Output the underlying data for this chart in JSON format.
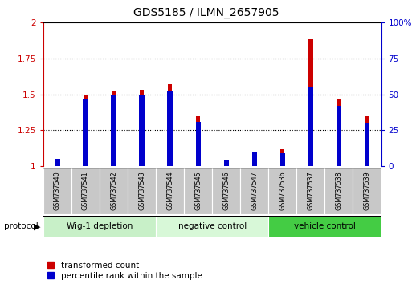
{
  "title": "GDS5185 / ILMN_2657905",
  "samples": [
    "GSM737540",
    "GSM737541",
    "GSM737542",
    "GSM737543",
    "GSM737544",
    "GSM737545",
    "GSM737546",
    "GSM737547",
    "GSM737536",
    "GSM737537",
    "GSM737538",
    "GSM737539"
  ],
  "transformed_count": [
    1.02,
    1.49,
    1.52,
    1.53,
    1.57,
    1.35,
    1.04,
    1.1,
    1.12,
    1.89,
    1.47,
    1.35
  ],
  "percentile_rank_pct": [
    5,
    47,
    50,
    50,
    52,
    31,
    4,
    10,
    9,
    55,
    42,
    30
  ],
  "groups": [
    {
      "label": "Wig-1 depletion",
      "start": 0,
      "end": 3,
      "color": "#c8f0c8"
    },
    {
      "label": "negative control",
      "start": 4,
      "end": 7,
      "color": "#d8f8d8"
    },
    {
      "label": "vehicle control",
      "start": 8,
      "end": 11,
      "color": "#44cc44"
    }
  ],
  "ylim_left": [
    1.0,
    2.0
  ],
  "ylim_right": [
    0,
    100
  ],
  "yticks_left": [
    1.0,
    1.25,
    1.5,
    1.75,
    2.0
  ],
  "yticks_right": [
    0,
    25,
    50,
    75,
    100
  ],
  "ytick_labels_left": [
    "1",
    "1.25",
    "1.5",
    "1.75",
    "2"
  ],
  "ytick_labels_right": [
    "0",
    "25",
    "50",
    "75",
    "100%"
  ],
  "bar_width": 0.15,
  "red_color": "#cc0000",
  "blue_color": "#0000cc",
  "bg_plot": "#ffffff",
  "bg_xticklabel": "#c8c8c8",
  "protocol_label": "protocol",
  "legend_red": "transformed count",
  "legend_blue": "percentile rank within the sample",
  "title_fontsize": 10
}
